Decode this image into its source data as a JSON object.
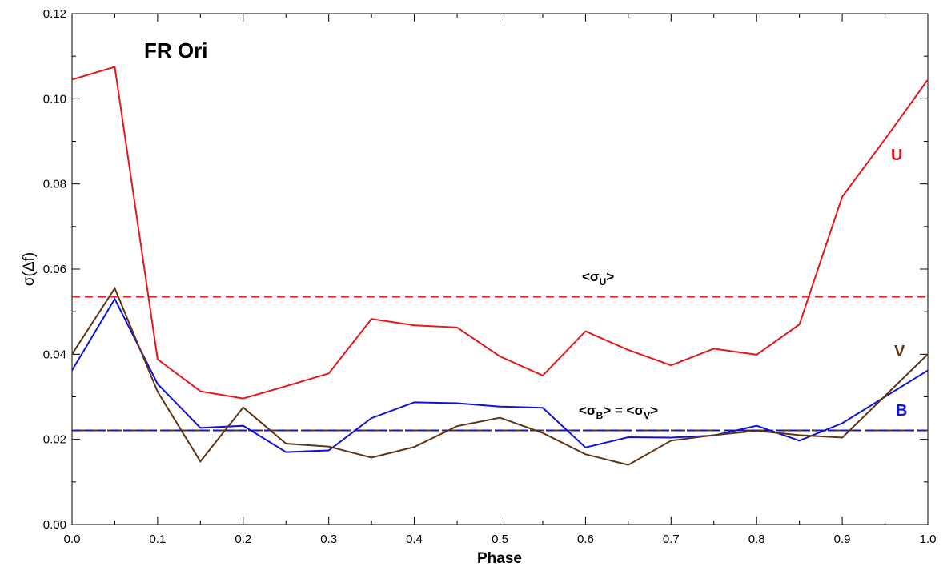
{
  "chart_data": {
    "type": "line",
    "title": "FR Ori",
    "xlabel": "Phase",
    "ylabel": "σ(Δf)",
    "xlim": [
      0.0,
      1.0
    ],
    "ylim": [
      0.0,
      0.12
    ],
    "x_ticks": [
      "0.0",
      "0.1",
      "0.2",
      "0.3",
      "0.4",
      "0.5",
      "0.6",
      "0.7",
      "0.8",
      "0.9",
      "1.0"
    ],
    "y_ticks": [
      "0.00",
      "0.02",
      "0.04",
      "0.06",
      "0.08",
      "0.10",
      "0.12"
    ],
    "grid": false,
    "x": [
      0.0,
      0.05,
      0.1,
      0.15,
      0.2,
      0.25,
      0.3,
      0.35,
      0.4,
      0.45,
      0.5,
      0.55,
      0.6,
      0.65,
      0.7,
      0.75,
      0.8,
      0.85,
      0.9,
      0.95,
      1.0
    ],
    "series": [
      {
        "name": "U",
        "color": "#e8161b",
        "values": [
          0.1045,
          0.1075,
          0.0388,
          0.0313,
          0.0296,
          0.0325,
          0.0355,
          0.0483,
          0.0468,
          0.0463,
          0.0395,
          0.035,
          0.0454,
          0.041,
          0.0374,
          0.0413,
          0.0399,
          0.047,
          0.077,
          0.0905,
          0.1045
        ]
      },
      {
        "name": "B",
        "color": "#1111dd",
        "values": [
          0.0362,
          0.053,
          0.033,
          0.0227,
          0.0232,
          0.017,
          0.0174,
          0.025,
          0.0287,
          0.0285,
          0.0277,
          0.0274,
          0.0181,
          0.0205,
          0.0204,
          0.0209,
          0.0232,
          0.0197,
          0.0238,
          0.03,
          0.0362
        ]
      },
      {
        "name": "V",
        "color": "#5e3412",
        "values": [
          0.04,
          0.0555,
          0.0312,
          0.0148,
          0.0275,
          0.019,
          0.0183,
          0.0157,
          0.0182,
          0.0231,
          0.0251,
          0.0215,
          0.0165,
          0.014,
          0.0197,
          0.021,
          0.022,
          0.021,
          0.0204,
          0.0302,
          0.04
        ]
      }
    ],
    "reference_lines": [
      {
        "value": 0.0535,
        "color": "#e8161b",
        "label_prefix": "<σ",
        "label_sub": "U",
        "label_suffix": ">"
      },
      {
        "value": 0.0221,
        "color": "#1111dd",
        "label_prefix": "<σ",
        "label_sub": "B",
        "label_suffix": "> = <σ",
        "label_sub2": "V",
        "label_suffix2": ">"
      },
      {
        "value": 0.0221,
        "color": "#5e3412"
      }
    ]
  }
}
